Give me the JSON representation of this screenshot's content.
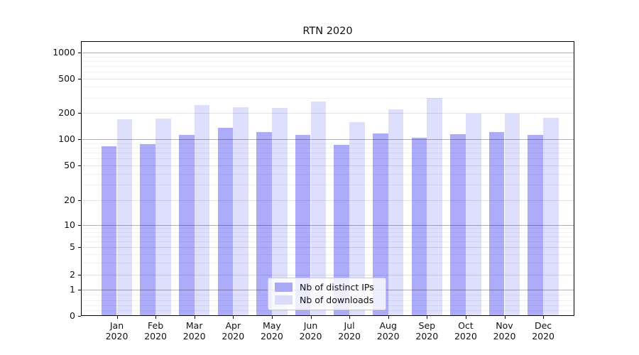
{
  "chart_data": {
    "type": "bar",
    "title": "RTN 2020",
    "categories": [
      "Jan",
      "Feb",
      "Mar",
      "Apr",
      "May",
      "Jun",
      "Jul",
      "Aug",
      "Sep",
      "Oct",
      "Nov",
      "Dec"
    ],
    "category_year": "2020",
    "series": [
      {
        "name": "Nb of distinct IPs",
        "values": [
          83,
          88,
          112,
          135,
          121,
          113,
          86,
          117,
          103,
          114,
          121,
          113
        ]
      },
      {
        "name": "Nb of downloads",
        "values": [
          168,
          172,
          247,
          234,
          229,
          272,
          156,
          220,
          298,
          197,
          198,
          174
        ]
      }
    ],
    "yscale": "symlog",
    "yticks": [
      0,
      1,
      2,
      5,
      10,
      20,
      50,
      100,
      200,
      500,
      1000
    ],
    "ylim": [
      0,
      1000
    ],
    "grid": true,
    "legend_position": "lower center"
  },
  "colors": {
    "distinct_ips_bar": "rgba(30,30,242,0.37)",
    "downloads_bar": "rgba(30,30,242,0.145)",
    "distinct_ips_swatch": "#a9a9f6",
    "downloads_swatch": "#dcdcf9",
    "grid_decade": "rgba(0,0,0,0.30)",
    "grid_major": "rgba(0,0,0,0.10)",
    "grid_minor": "rgba(0,0,0,0.05)",
    "axis": "#000000"
  }
}
